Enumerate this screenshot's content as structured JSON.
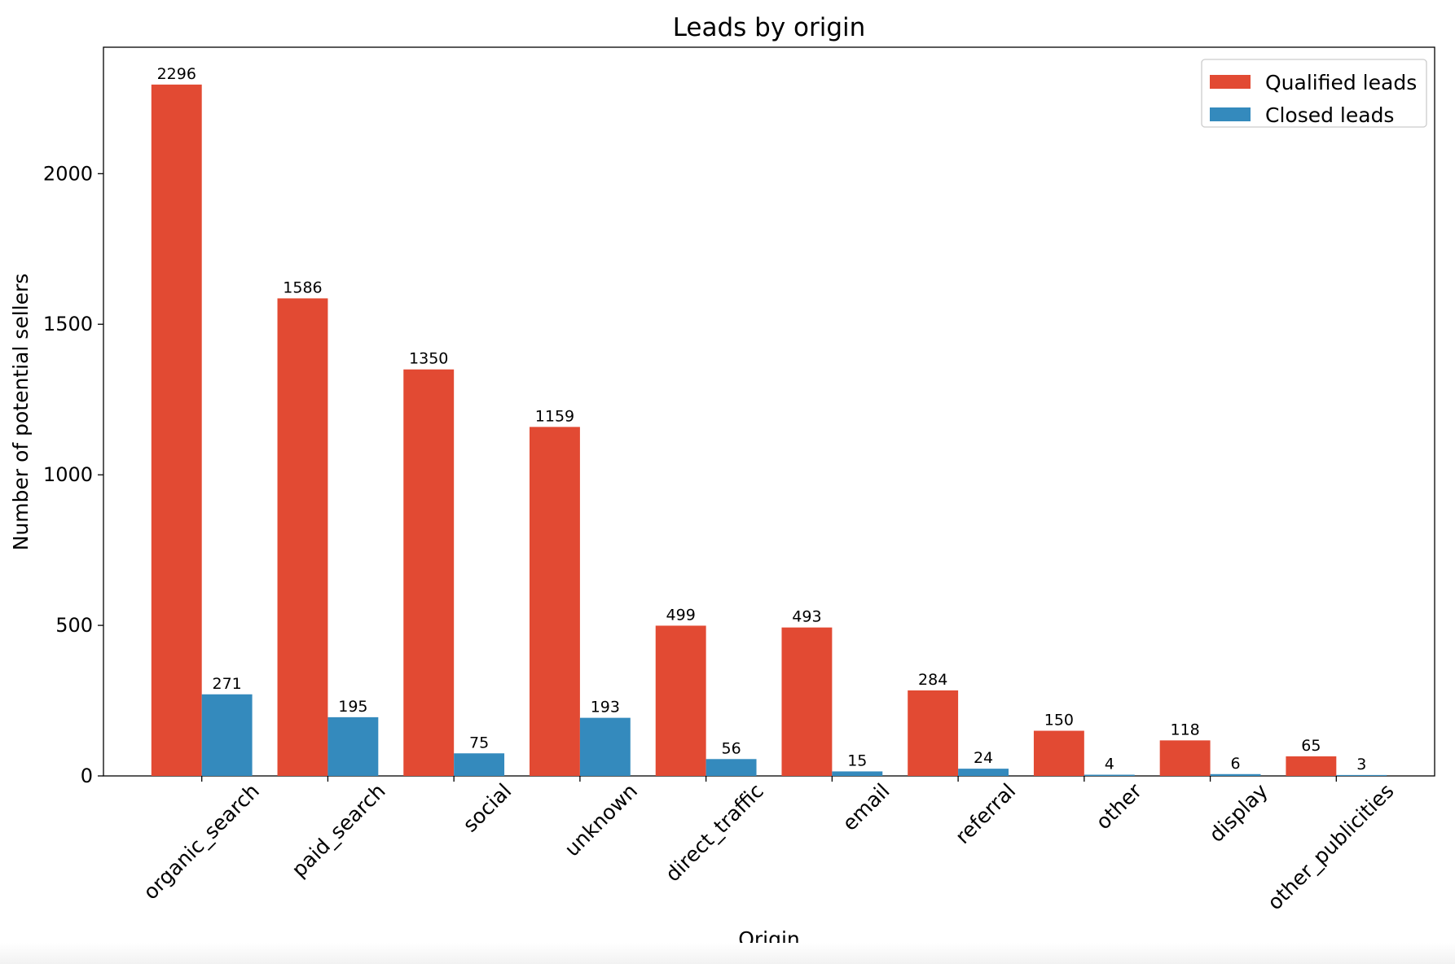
{
  "chart_data": {
    "type": "bar",
    "title": "Leads by origin",
    "xlabel": "Origin",
    "ylabel": "Number of potential sellers",
    "categories": [
      "organic_search",
      "paid_search",
      "social",
      "unknown",
      "direct_traffic",
      "email",
      "referral",
      "other",
      "display",
      "other_publicities"
    ],
    "series": [
      {
        "name": "Qualified leads",
        "color": "#e24a33",
        "values": [
          2296,
          1586,
          1350,
          1159,
          499,
          493,
          284,
          150,
          118,
          65
        ]
      },
      {
        "name": "Closed leads",
        "color": "#348abd",
        "values": [
          271,
          195,
          75,
          193,
          56,
          15,
          24,
          4,
          6,
          3
        ]
      }
    ],
    "ylim": [
      0,
      2420
    ],
    "yticks": [
      0,
      500,
      1000,
      1500,
      2000
    ],
    "legend": "top-right",
    "grid": false
  }
}
